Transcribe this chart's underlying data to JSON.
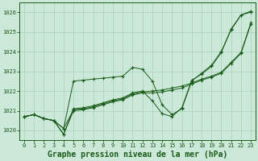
{
  "background_color": "#cce8d8",
  "grid_color": "#aad4c0",
  "line_color": "#1a5c1a",
  "marker_color": "#1a5c1a",
  "xlabel": "Graphe pression niveau de la mer (hPa)",
  "xlabel_fontsize": 7,
  "ylim": [
    1019.5,
    1026.5
  ],
  "xlim": [
    -0.5,
    23.5
  ],
  "ytick_labels": [
    "1020",
    "1021",
    "1022",
    "1023",
    "1024",
    "1025",
    "1026"
  ],
  "ytick_vals": [
    1020,
    1021,
    1022,
    1023,
    1024,
    1025,
    1026
  ],
  "xtick_vals": [
    0,
    1,
    2,
    3,
    4,
    5,
    6,
    7,
    8,
    9,
    10,
    11,
    12,
    13,
    14,
    15,
    16,
    17,
    18,
    19,
    20,
    21,
    22,
    23
  ],
  "tick_fontsize": 5,
  "series": [
    [
      1020.7,
      1020.8,
      1020.6,
      1020.5,
      1020.1,
      1022.5,
      1022.55,
      1022.6,
      1022.65,
      1022.7,
      1022.75,
      1023.2,
      1023.1,
      1022.5,
      1021.3,
      1020.8,
      1021.1,
      1022.5,
      1022.9,
      1023.3,
      1024.0,
      1025.1,
      1025.85,
      1026.05
    ],
    [
      1020.7,
      1020.8,
      1020.6,
      1020.5,
      1020.1,
      1021.05,
      1021.1,
      1021.2,
      1021.35,
      1021.5,
      1021.6,
      1021.85,
      1021.95,
      1022.0,
      1022.05,
      1022.15,
      1022.25,
      1022.4,
      1022.6,
      1022.75,
      1022.95,
      1023.45,
      1023.95,
      1025.45
    ],
    [
      1020.7,
      1020.8,
      1020.6,
      1020.5,
      1019.8,
      1021.1,
      1021.15,
      1021.25,
      1021.4,
      1021.55,
      1021.65,
      1021.9,
      1022.0,
      1021.5,
      1020.85,
      1020.7,
      1021.15,
      1022.55,
      1022.85,
      1023.25,
      1023.95,
      1025.15,
      1025.85,
      1026.0
    ],
    [
      1020.7,
      1020.8,
      1020.6,
      1020.5,
      1019.8,
      1021.0,
      1021.05,
      1021.15,
      1021.3,
      1021.45,
      1021.55,
      1021.8,
      1021.9,
      1021.9,
      1021.95,
      1022.05,
      1022.15,
      1022.35,
      1022.55,
      1022.7,
      1022.9,
      1023.4,
      1023.9,
      1025.4
    ]
  ]
}
